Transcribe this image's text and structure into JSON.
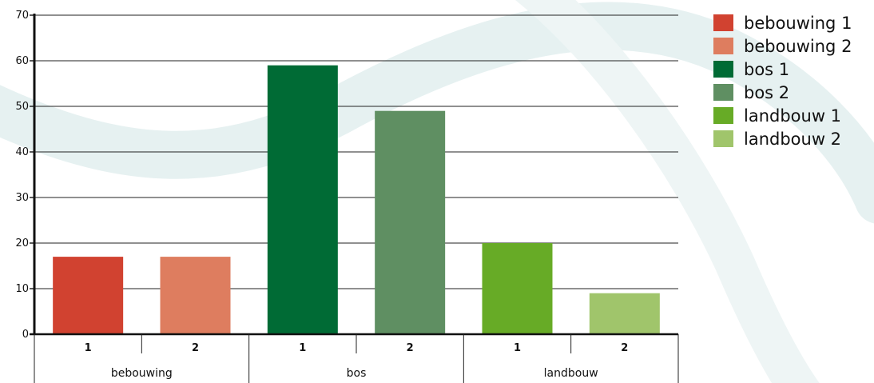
{
  "chart_data": {
    "type": "bar",
    "title": "",
    "xlabel": "",
    "ylabel": "",
    "ylim": [
      0,
      70
    ],
    "yticks": [
      0,
      10,
      20,
      30,
      40,
      50,
      60,
      70
    ],
    "grid": true,
    "legend_position": "right",
    "groups": [
      {
        "label": "bebouwing",
        "subcategories": [
          "1",
          "2"
        ]
      },
      {
        "label": "bos",
        "subcategories": [
          "1",
          "2"
        ]
      },
      {
        "label": "landbouw",
        "subcategories": [
          "1",
          "2"
        ]
      }
    ],
    "series": [
      {
        "name": "bebouwing 1",
        "value": 17,
        "color": "#d14230"
      },
      {
        "name": "bebouwing 2",
        "value": 17,
        "color": "#de7d5f"
      },
      {
        "name": "bos 1",
        "value": 59,
        "color": "#006b35"
      },
      {
        "name": "bos 2",
        "value": 49,
        "color": "#5f8f62"
      },
      {
        "name": "landbouw 1",
        "value": 20,
        "color": "#67ab26"
      },
      {
        "name": "landbouw 2",
        "value": 9,
        "color": "#a0c56b"
      }
    ]
  },
  "legend": {
    "items": [
      {
        "label": "bebouwing 1",
        "color": "#d14230"
      },
      {
        "label": "bebouwing 2",
        "color": "#de7d5f"
      },
      {
        "label": "bos 1",
        "color": "#006b35"
      },
      {
        "label": "bos 2",
        "color": "#5f8f62"
      },
      {
        "label": "landbouw 1",
        "color": "#67ab26"
      },
      {
        "label": "landbouw 2",
        "color": "#a0c56b"
      }
    ]
  }
}
